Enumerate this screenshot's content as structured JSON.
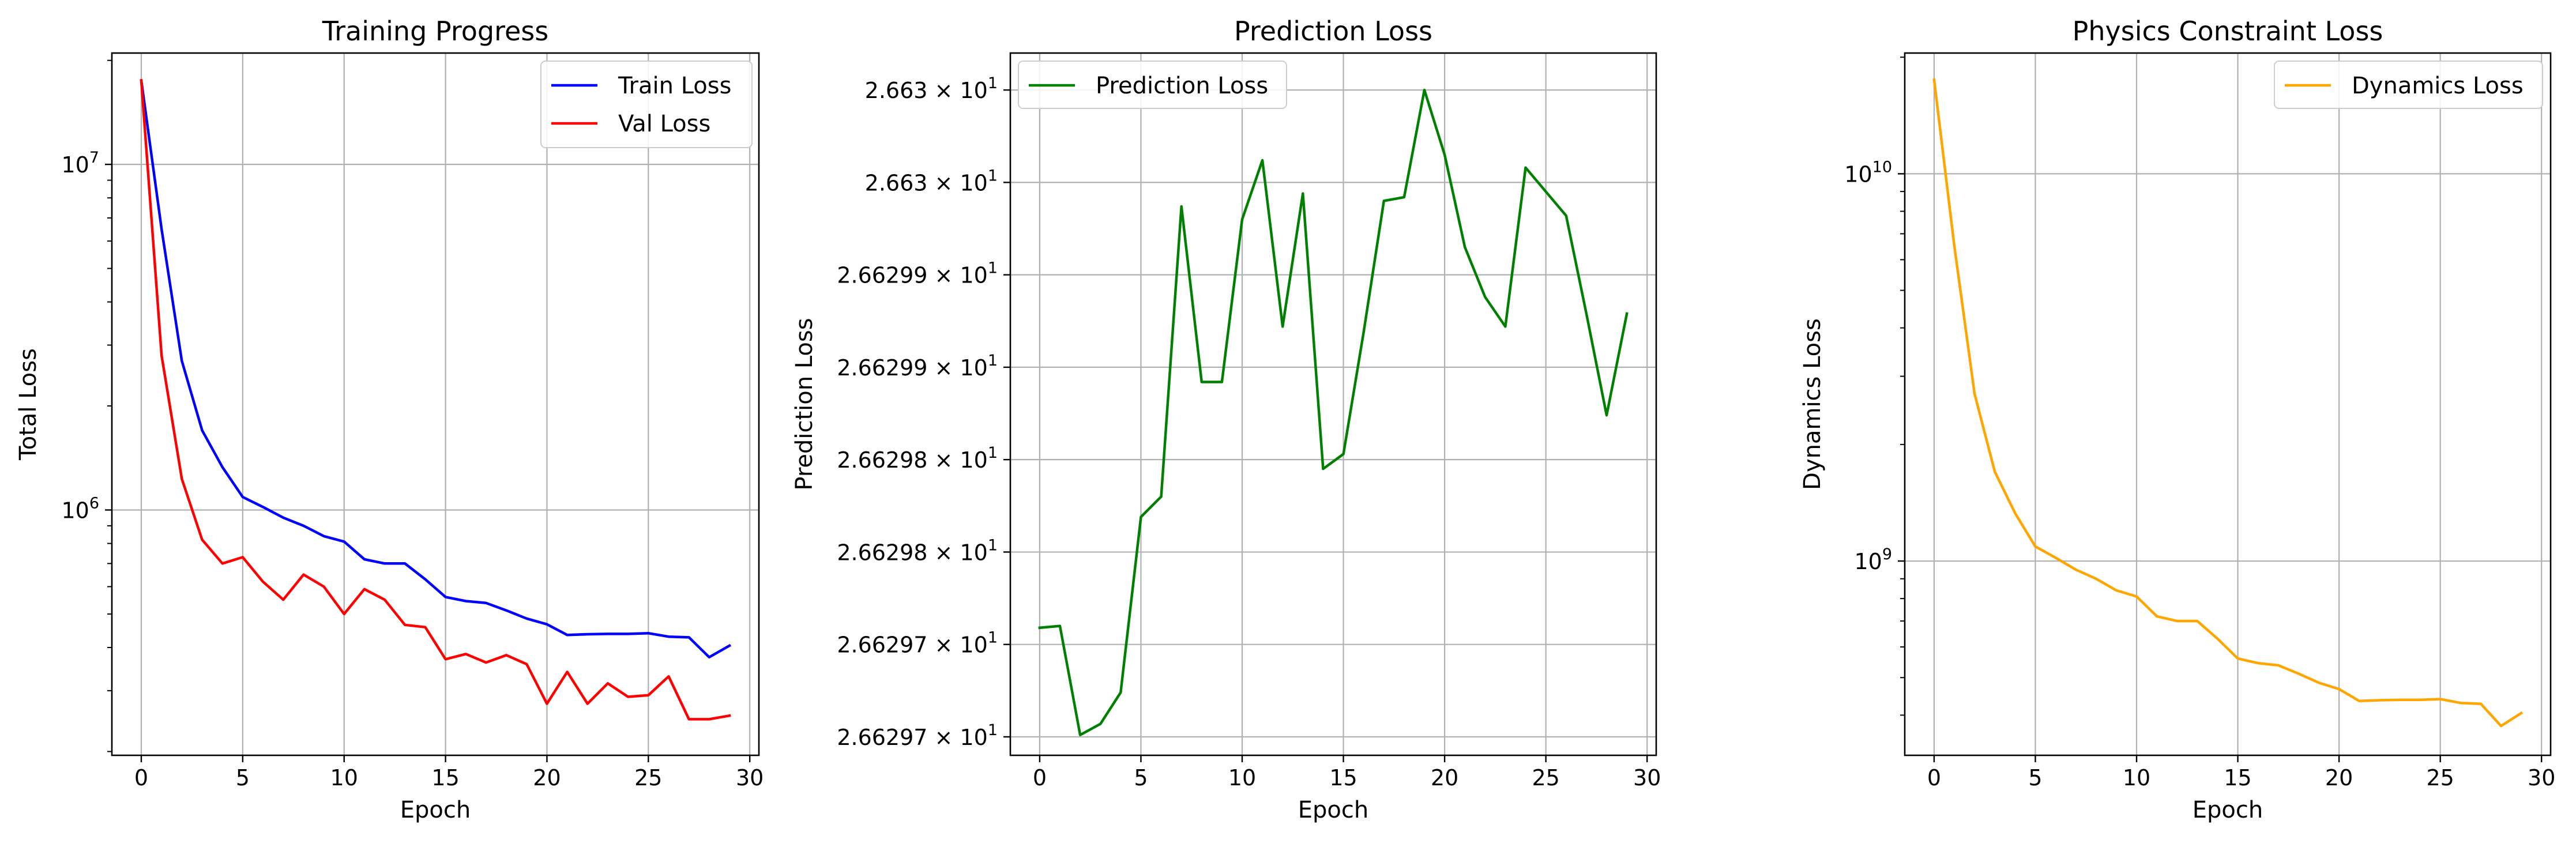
{
  "chart_data": [
    {
      "type": "line",
      "title": "Training Progress",
      "xlabel": "Epoch",
      "ylabel": "Total Loss",
      "yscale": "log",
      "xlim": [
        -1.45,
        30.45
      ],
      "ylim": [
        195000,
        21000000
      ],
      "xticks": [
        0,
        5,
        10,
        15,
        20,
        25,
        30
      ],
      "yticks": [
        {
          "base": "10",
          "exp": "6",
          "value": 1000000
        },
        {
          "base": "10",
          "exp": "7",
          "value": 10000000
        }
      ],
      "grid": true,
      "legend": "upper right",
      "x": [
        0,
        1,
        2,
        3,
        4,
        5,
        6,
        7,
        8,
        9,
        10,
        11,
        12,
        13,
        14,
        15,
        16,
        17,
        18,
        19,
        20,
        21,
        22,
        23,
        24,
        25,
        26,
        27,
        28,
        29
      ],
      "series": [
        {
          "name": "Train Loss",
          "color": "#0000ff",
          "values": [
            17500000,
            6500000,
            2700000,
            1700000,
            1330000,
            1090000,
            1020000,
            950000,
            900000,
            840000,
            810000,
            720000,
            700000,
            700000,
            630000,
            560000,
            545000,
            538000,
            512000,
            485000,
            467000,
            435000,
            437000,
            438000,
            438000,
            440000,
            430000,
            428000,
            375000,
            405000
          ]
        },
        {
          "name": "Val Loss",
          "color": "#ff0000",
          "values": [
            17500000,
            2800000,
            1230000,
            820000,
            700000,
            730000,
            620000,
            550000,
            650000,
            600000,
            500000,
            590000,
            550000,
            465000,
            458000,
            370000,
            383000,
            362000,
            380000,
            358000,
            275000,
            340000,
            275000,
            315000,
            288000,
            291000,
            330000,
            248000,
            248000,
            254000
          ]
        }
      ]
    },
    {
      "type": "line",
      "title": "Prediction Loss",
      "xlabel": "Epoch",
      "ylabel": "Prediction Loss",
      "yscale": "log",
      "xlim": [
        -1.45,
        30.45
      ],
      "ylim": [
        26.62966,
        26.63004
      ],
      "xticks": [
        0,
        5,
        10,
        15,
        20,
        25,
        30
      ],
      "yticks": [
        {
          "mantissa": "2.66297",
          "base": "10",
          "exp": "1",
          "value": 26.62967
        },
        {
          "mantissa": "2.66297",
          "base": "10",
          "exp": "1",
          "value": 26.62972
        },
        {
          "mantissa": "2.66298",
          "base": "10",
          "exp": "1",
          "value": 26.62977
        },
        {
          "mantissa": "2.66298",
          "base": "10",
          "exp": "1",
          "value": 26.62982
        },
        {
          "mantissa": "2.66299",
          "base": "10",
          "exp": "1",
          "value": 26.62987
        },
        {
          "mantissa": "2.66299",
          "base": "10",
          "exp": "1",
          "value": 26.62992
        },
        {
          "mantissa": "2.663",
          "base": "10",
          "exp": "1",
          "value": 26.62997
        },
        {
          "mantissa": "2.663",
          "base": "10",
          "exp": "1",
          "value": 26.63002
        }
      ],
      "grid": true,
      "legend": "upper left",
      "x": [
        0,
        1,
        2,
        3,
        4,
        5,
        6,
        7,
        8,
        9,
        10,
        11,
        12,
        13,
        14,
        15,
        16,
        17,
        18,
        19,
        20,
        21,
        22,
        23,
        24,
        25,
        26,
        27,
        28,
        29
      ],
      "series": [
        {
          "name": "Prediction Loss",
          "color": "#008000",
          "values": [
            26.629729,
            26.62973,
            26.629671,
            26.629677,
            26.629694,
            26.629789,
            26.6298,
            26.629957,
            26.629862,
            26.629862,
            26.62995,
            26.629982,
            26.629892,
            26.629964,
            26.629815,
            26.629823,
            26.629889,
            26.62996,
            26.629962,
            26.63002,
            26.629985,
            26.629935,
            26.629908,
            26.629892,
            26.629978,
            26.629965,
            26.629952,
            26.629899,
            26.629844,
            26.629899
          ]
        }
      ]
    },
    {
      "type": "line",
      "title": "Physics Constraint Loss",
      "xlabel": "Epoch",
      "ylabel": "Dynamics Loss",
      "yscale": "log",
      "xlim": [
        -1.45,
        30.45
      ],
      "ylim": [
        315000000,
        20500000000
      ],
      "xticks": [
        0,
        5,
        10,
        15,
        20,
        25,
        30
      ],
      "yticks": [
        {
          "base": "10",
          "exp": "9",
          "value": 1000000000
        },
        {
          "base": "10",
          "exp": "10",
          "value": 10000000000
        }
      ],
      "grid": true,
      "legend": "upper right",
      "x": [
        0,
        1,
        2,
        3,
        4,
        5,
        6,
        7,
        8,
        9,
        10,
        11,
        12,
        13,
        14,
        15,
        16,
        17,
        18,
        19,
        20,
        21,
        22,
        23,
        24,
        25,
        26,
        27,
        28,
        29
      ],
      "series": [
        {
          "name": "Dynamics Loss",
          "color": "#ffa500",
          "values": [
            17500000000,
            6500000000,
            2700000000,
            1700000000,
            1330000000,
            1090000000,
            1020000000,
            950000000,
            900000000,
            840000000,
            810000000,
            720000000,
            700000000,
            700000000,
            630000000,
            560000000,
            545000000,
            538000000,
            512000000,
            485000000,
            467000000,
            435000000,
            437000000,
            438000000,
            438000000,
            440000000,
            430000000,
            428000000,
            375000000,
            405000000
          ]
        }
      ]
    }
  ]
}
